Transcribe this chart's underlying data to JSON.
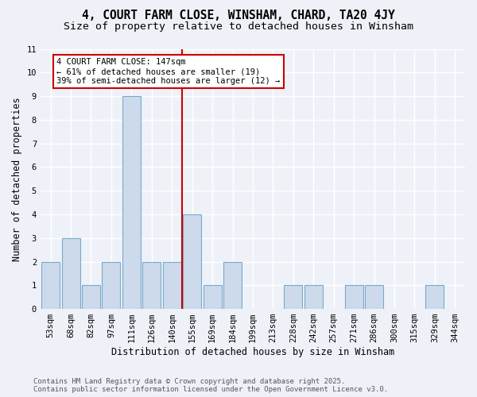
{
  "title": "4, COURT FARM CLOSE, WINSHAM, CHARD, TA20 4JY",
  "subtitle": "Size of property relative to detached houses in Winsham",
  "xlabel": "Distribution of detached houses by size in Winsham",
  "ylabel": "Number of detached properties",
  "categories": [
    "53sqm",
    "68sqm",
    "82sqm",
    "97sqm",
    "111sqm",
    "126sqm",
    "140sqm",
    "155sqm",
    "169sqm",
    "184sqm",
    "199sqm",
    "213sqm",
    "228sqm",
    "242sqm",
    "257sqm",
    "271sqm",
    "286sqm",
    "300sqm",
    "315sqm",
    "329sqm",
    "344sqm"
  ],
  "values": [
    2,
    3,
    1,
    2,
    9,
    2,
    2,
    4,
    1,
    2,
    0,
    0,
    1,
    1,
    0,
    1,
    1,
    0,
    0,
    1,
    0
  ],
  "bar_color": "#ccdaeb",
  "bar_edge_color": "#7aaacb",
  "reference_line_x": 6.5,
  "annotation_text": "4 COURT FARM CLOSE: 147sqm\n← 61% of detached houses are smaller (19)\n39% of semi-detached houses are larger (12) →",
  "annotation_box_color": "#ffffff",
  "annotation_box_edge_color": "#cc0000",
  "ref_line_color": "#cc0000",
  "ylim": [
    0,
    11
  ],
  "yticks": [
    0,
    1,
    2,
    3,
    4,
    5,
    6,
    7,
    8,
    9,
    10,
    11
  ],
  "background_color": "#eef2f8",
  "grid_color": "#ffffff",
  "footer": "Contains HM Land Registry data © Crown copyright and database right 2025.\nContains public sector information licensed under the Open Government Licence v3.0.",
  "title_fontsize": 10.5,
  "subtitle_fontsize": 9.5,
  "axis_label_fontsize": 8.5,
  "tick_fontsize": 7.5,
  "footer_fontsize": 6.5
}
